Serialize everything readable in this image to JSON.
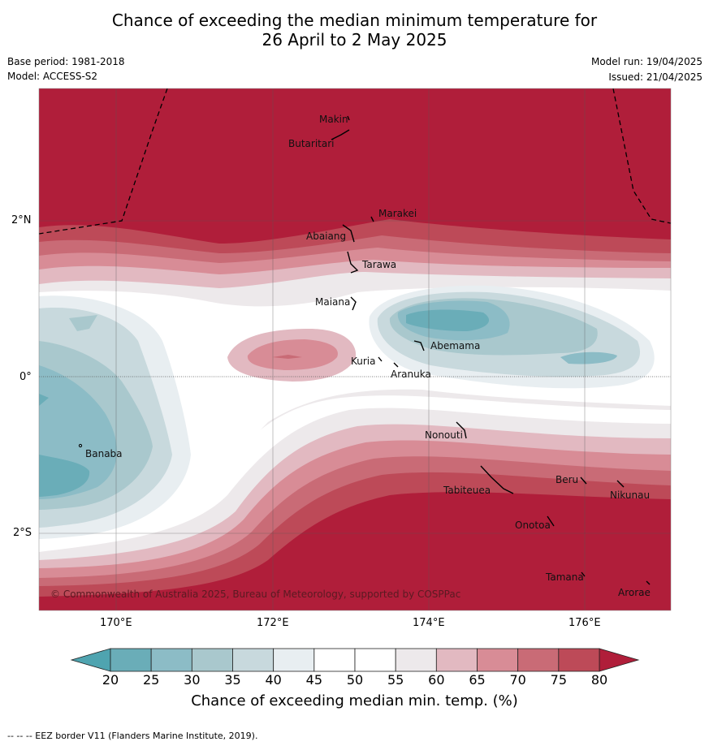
{
  "header": {
    "title_line1": "Chance of exceeding the median minimum temperature for",
    "title_line2": "26 April to 2 May 2025",
    "base_period": "Base period: 1981-2018",
    "model": "Model: ACCESS-S2",
    "model_run": "Model run: 19/04/2025",
    "issued": "Issued: 21/04/2025"
  },
  "map": {
    "lat_ticks": [
      "2°N",
      "0°",
      "2°S"
    ],
    "lon_ticks": [
      "170°E",
      "172°E",
      "174°E",
      "176°E"
    ],
    "copyright": "© Commonwealth of Australia 2025, Bureau of Meteorology, supported by COSPPac",
    "islands": [
      "Makin",
      "Butaritari",
      "Marakei",
      "Abaiang",
      "Tarawa",
      "Maiana",
      "Abemama",
      "Kuria",
      "Aranuka",
      "Banaba",
      "Nonouti",
      "Tabiteuea",
      "Beru",
      "Nikunau",
      "Onotoa",
      "Tamana",
      "Arorae"
    ]
  },
  "colorbar": {
    "labels": [
      "20",
      "25",
      "30",
      "35",
      "40",
      "45",
      "50",
      "55",
      "60",
      "65",
      "70",
      "75",
      "80"
    ],
    "colors": [
      "#6aadb8",
      "#8cbcc6",
      "#a9c8cd",
      "#c8d9dd",
      "#e8eef1",
      "#ffffff",
      "#ffffff",
      "#ede9eb",
      "#e2b9c1",
      "#d88c96",
      "#c96b76",
      "#bd4a58"
    ],
    "under_color": "#4fa4b0",
    "over_color": "#b01e3a",
    "title": "Chance of exceeding median min. temp. (%)"
  },
  "footer": {
    "eez_note": "--  --  -- EEZ border V11 (Flanders Marine Institute, 2019)."
  }
}
